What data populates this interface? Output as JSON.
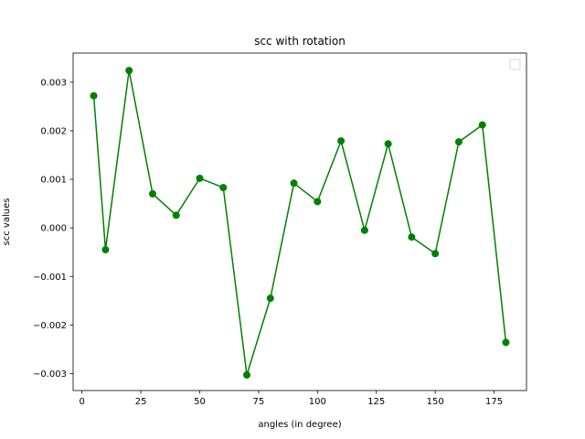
{
  "chart_data": {
    "type": "line",
    "title": "scc with rotation",
    "xlabel": "angles (in degree)",
    "ylabel": "scc values",
    "xlim": [
      -3.75,
      188.75
    ],
    "ylim": [
      -0.00335,
      0.0036
    ],
    "x_ticks": [
      0,
      25,
      50,
      75,
      100,
      125,
      150,
      175
    ],
    "x_tick_labels": [
      "0",
      "25",
      "50",
      "75",
      "100",
      "125",
      "150",
      "175"
    ],
    "y_ticks": [
      -0.003,
      -0.002,
      -0.001,
      0.0,
      0.001,
      0.002,
      0.003
    ],
    "y_tick_labels": [
      "−0.003",
      "−0.002",
      "−0.001",
      "0.000",
      "0.001",
      "0.002",
      "0.003"
    ],
    "grid": false,
    "legend": {
      "placement": "top-right",
      "entries": []
    },
    "series": [
      {
        "color": "#008000",
        "marker": "circle",
        "x": [
          5,
          10,
          20,
          30,
          40,
          50,
          60,
          70,
          80,
          90,
          100,
          110,
          120,
          130,
          140,
          150,
          160,
          170,
          180
        ],
        "y": [
          0.00272,
          -0.00045,
          0.00324,
          0.0007,
          0.00026,
          0.00102,
          0.00083,
          -0.00303,
          -0.00145,
          0.00092,
          0.00054,
          0.00179,
          -5e-05,
          0.00173,
          -0.00019,
          -0.00053,
          0.00177,
          0.00212,
          -0.00236
        ]
      }
    ]
  }
}
